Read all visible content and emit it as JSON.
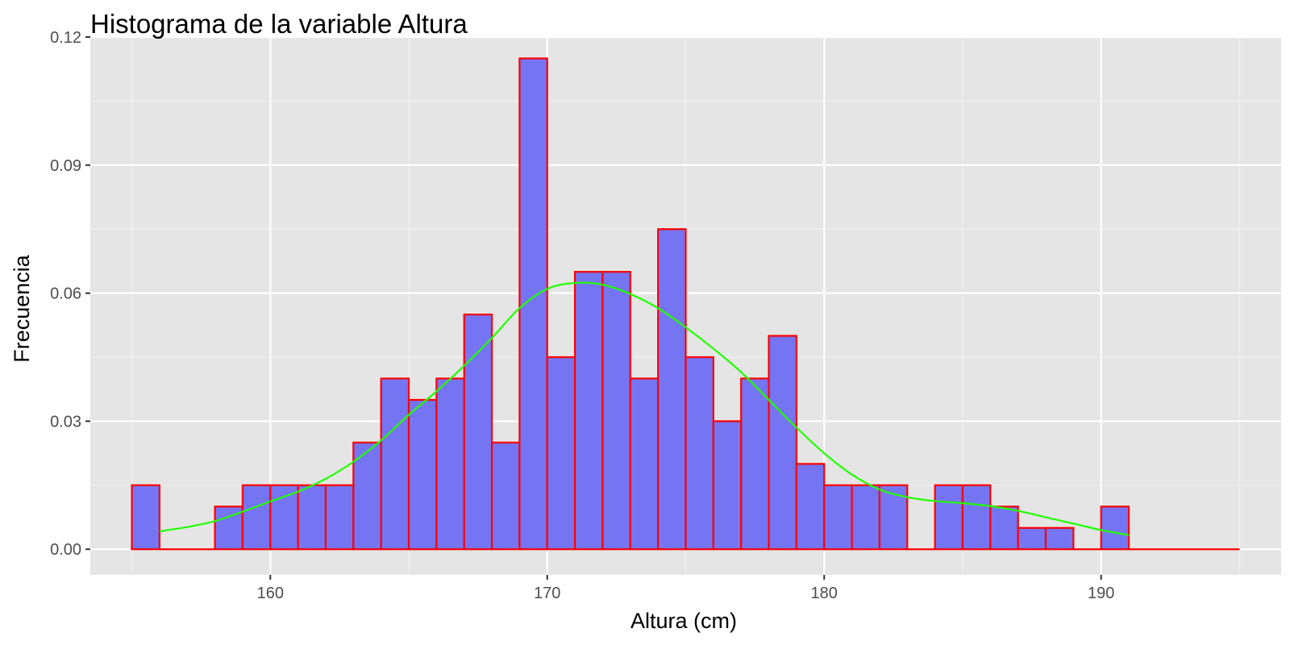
{
  "chart_data": {
    "type": "bar",
    "title": "Histograma de la variable Altura",
    "xlabel": "Altura (cm)",
    "ylabel": "Frecuencia",
    "xlim": [
      153.5,
      196.5
    ],
    "ylim": [
      -0.006,
      0.12
    ],
    "x_ticks": [
      160,
      170,
      180,
      190
    ],
    "x_tick_labels": [
      "160",
      "170",
      "180",
      "190"
    ],
    "y_ticks": [
      0,
      0.03,
      0.06,
      0.09,
      0.12
    ],
    "y_tick_labels": [
      "0.00",
      "0.03",
      "0.06",
      "0.09",
      "0.12"
    ],
    "grid": true,
    "bin_width": 1,
    "bins": [
      {
        "start": 155,
        "end": 156,
        "value": 0.015
      },
      {
        "start": 156,
        "end": 157,
        "value": 0.0
      },
      {
        "start": 157,
        "end": 158,
        "value": 0.0
      },
      {
        "start": 158,
        "end": 159,
        "value": 0.01
      },
      {
        "start": 159,
        "end": 160,
        "value": 0.015
      },
      {
        "start": 160,
        "end": 161,
        "value": 0.015
      },
      {
        "start": 161,
        "end": 162,
        "value": 0.015
      },
      {
        "start": 162,
        "end": 163,
        "value": 0.015
      },
      {
        "start": 163,
        "end": 164,
        "value": 0.025
      },
      {
        "start": 164,
        "end": 165,
        "value": 0.04
      },
      {
        "start": 165,
        "end": 166,
        "value": 0.035
      },
      {
        "start": 166,
        "end": 167,
        "value": 0.04
      },
      {
        "start": 167,
        "end": 168,
        "value": 0.055
      },
      {
        "start": 168,
        "end": 169,
        "value": 0.025
      },
      {
        "start": 169,
        "end": 170,
        "value": 0.115
      },
      {
        "start": 170,
        "end": 171,
        "value": 0.045
      },
      {
        "start": 171,
        "end": 172,
        "value": 0.065
      },
      {
        "start": 172,
        "end": 173,
        "value": 0.065
      },
      {
        "start": 173,
        "end": 174,
        "value": 0.04
      },
      {
        "start": 174,
        "end": 175,
        "value": 0.075
      },
      {
        "start": 175,
        "end": 176,
        "value": 0.045
      },
      {
        "start": 176,
        "end": 177,
        "value": 0.03
      },
      {
        "start": 177,
        "end": 178,
        "value": 0.04
      },
      {
        "start": 178,
        "end": 179,
        "value": 0.05
      },
      {
        "start": 179,
        "end": 180,
        "value": 0.02
      },
      {
        "start": 180,
        "end": 181,
        "value": 0.015
      },
      {
        "start": 181,
        "end": 182,
        "value": 0.015
      },
      {
        "start": 182,
        "end": 183,
        "value": 0.015
      },
      {
        "start": 183,
        "end": 184,
        "value": 0.0
      },
      {
        "start": 184,
        "end": 185,
        "value": 0.015
      },
      {
        "start": 185,
        "end": 186,
        "value": 0.015
      },
      {
        "start": 186,
        "end": 187,
        "value": 0.01
      },
      {
        "start": 187,
        "end": 188,
        "value": 0.005
      },
      {
        "start": 188,
        "end": 189,
        "value": 0.005
      },
      {
        "start": 189,
        "end": 190,
        "value": 0.0
      },
      {
        "start": 190,
        "end": 191,
        "value": 0.01
      },
      {
        "start": 191,
        "end": 192,
        "value": 0.0
      },
      {
        "start": 192,
        "end": 193,
        "value": 0.0
      },
      {
        "start": 193,
        "end": 194,
        "value": 0.0
      },
      {
        "start": 194,
        "end": 195,
        "value": 0.0
      }
    ],
    "density_curve": [
      {
        "x": 156.0,
        "y": 0.0042
      },
      {
        "x": 157.0,
        "y": 0.0052
      },
      {
        "x": 158.0,
        "y": 0.0066
      },
      {
        "x": 159.0,
        "y": 0.0088
      },
      {
        "x": 160.0,
        "y": 0.0112
      },
      {
        "x": 161.0,
        "y": 0.0135
      },
      {
        "x": 162.0,
        "y": 0.0165
      },
      {
        "x": 163.0,
        "y": 0.0205
      },
      {
        "x": 164.0,
        "y": 0.0255
      },
      {
        "x": 165.0,
        "y": 0.0315
      },
      {
        "x": 166.0,
        "y": 0.037
      },
      {
        "x": 167.0,
        "y": 0.043
      },
      {
        "x": 168.0,
        "y": 0.0495
      },
      {
        "x": 169.0,
        "y": 0.0565
      },
      {
        "x": 170.0,
        "y": 0.061
      },
      {
        "x": 171.0,
        "y": 0.0624
      },
      {
        "x": 172.0,
        "y": 0.062
      },
      {
        "x": 173.0,
        "y": 0.0598
      },
      {
        "x": 174.0,
        "y": 0.0565
      },
      {
        "x": 175.0,
        "y": 0.052
      },
      {
        "x": 176.0,
        "y": 0.047
      },
      {
        "x": 177.0,
        "y": 0.0415
      },
      {
        "x": 178.0,
        "y": 0.035
      },
      {
        "x": 179.0,
        "y": 0.0285
      },
      {
        "x": 180.0,
        "y": 0.0225
      },
      {
        "x": 181.0,
        "y": 0.0175
      },
      {
        "x": 182.0,
        "y": 0.014
      },
      {
        "x": 183.0,
        "y": 0.0122
      },
      {
        "x": 184.0,
        "y": 0.0113
      },
      {
        "x": 185.0,
        "y": 0.0108
      },
      {
        "x": 186.0,
        "y": 0.0101
      },
      {
        "x": 187.0,
        "y": 0.009
      },
      {
        "x": 188.0,
        "y": 0.0075
      },
      {
        "x": 189.0,
        "y": 0.006
      },
      {
        "x": 190.0,
        "y": 0.0045
      },
      {
        "x": 191.0,
        "y": 0.0033
      }
    ],
    "colors": {
      "bar_fill": "#7575F3",
      "bar_stroke": "#FF0000",
      "density_line": "#22FF00",
      "panel_background": "#E5E5E5",
      "grid_major": "#FFFFFF",
      "grid_minor": "#F1F1F1",
      "tick_text": "#4D4D4D",
      "tick_mark": "#333333",
      "title_text": "#000000"
    }
  }
}
